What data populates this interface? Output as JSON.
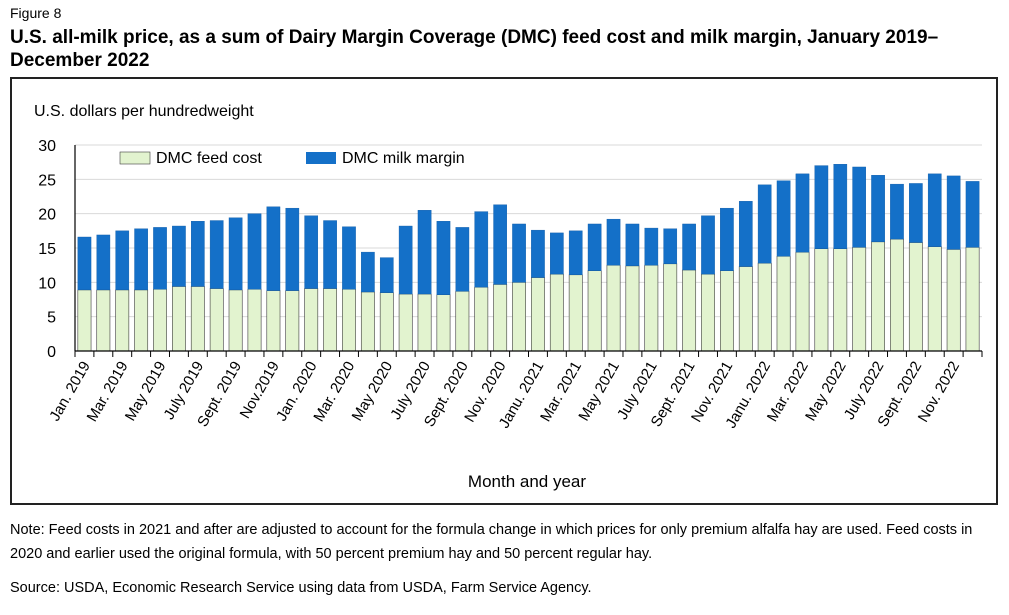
{
  "figure_label": "Figure 8",
  "title": "U.S. all-milk price, as a sum of Dairy Margin Coverage (DMC) feed cost and milk margin, January 2019–December 2022",
  "note": "Note: Feed costs in 2021 and after are adjusted to account for the formula change in which prices for only premium alfalfa hay are used. Feed costs in 2020 and earlier used the original formula, with 50 percent premium hay and 50 percent regular hay.",
  "source": "Source: USDA, Economic Research Service using data from USDA, Farm Service Agency.",
  "colors": {
    "feed": "#e2f3cf",
    "margin": "#1470c8",
    "axis": "#000000",
    "grid": "#d9d9d9"
  },
  "chart_data": {
    "type": "bar",
    "stacked": true,
    "ylabel": "U.S. dollars per hundredweight",
    "xlabel": "Month and year",
    "ylim": [
      0,
      30
    ],
    "yticks": [
      0,
      5,
      10,
      15,
      20,
      25,
      30
    ],
    "grid": "horizontal",
    "legend_position": "top-left",
    "x_tick_labels": [
      {
        "index": 0,
        "label": "Jan. 2019"
      },
      {
        "index": 2,
        "label": "Mar. 2019"
      },
      {
        "index": 4,
        "label": "May 2019"
      },
      {
        "index": 6,
        "label": "July 2019"
      },
      {
        "index": 8,
        "label": "Sept. 2019"
      },
      {
        "index": 10,
        "label": "Nov.2019"
      },
      {
        "index": 12,
        "label": "Jan. 2020"
      },
      {
        "index": 14,
        "label": "Mar. 2020"
      },
      {
        "index": 16,
        "label": "May 2020"
      },
      {
        "index": 18,
        "label": "July 2020"
      },
      {
        "index": 20,
        "label": "Sept. 2020"
      },
      {
        "index": 22,
        "label": "Nov. 2020"
      },
      {
        "index": 24,
        "label": "Janu. 2021"
      },
      {
        "index": 26,
        "label": "Mar. 2021"
      },
      {
        "index": 28,
        "label": "May 2021"
      },
      {
        "index": 30,
        "label": "July 2021"
      },
      {
        "index": 32,
        "label": "Sept. 2021"
      },
      {
        "index": 34,
        "label": "Nov. 2021"
      },
      {
        "index": 36,
        "label": "Janu. 2022"
      },
      {
        "index": 38,
        "label": "Mar. 2022"
      },
      {
        "index": 40,
        "label": "May 2022"
      },
      {
        "index": 42,
        "label": "July 2022"
      },
      {
        "index": 44,
        "label": "Sept. 2022"
      },
      {
        "index": 46,
        "label": "Nov. 2022"
      }
    ],
    "series": [
      {
        "name": "DMC feed cost",
        "values": [
          8.9,
          8.9,
          8.9,
          8.9,
          9.0,
          9.4,
          9.4,
          9.1,
          8.9,
          9.0,
          8.8,
          8.8,
          9.1,
          9.1,
          9.0,
          8.6,
          8.5,
          8.3,
          8.3,
          8.2,
          8.7,
          9.3,
          9.7,
          10.0,
          10.7,
          11.2,
          11.1,
          11.7,
          12.5,
          12.4,
          12.5,
          12.7,
          11.8,
          11.2,
          11.7,
          12.3,
          12.8,
          13.8,
          14.4,
          14.9,
          14.9,
          15.1,
          15.9,
          16.3,
          15.8,
          15.2,
          14.8,
          15.1
        ]
      },
      {
        "name": "DMC milk margin",
        "values": [
          7.7,
          8.0,
          8.6,
          8.9,
          9.0,
          8.8,
          9.5,
          9.9,
          10.5,
          11.0,
          12.2,
          12.0,
          10.6,
          9.9,
          9.1,
          5.8,
          5.1,
          9.9,
          12.2,
          10.7,
          9.3,
          11.0,
          11.6,
          8.5,
          6.9,
          6.0,
          6.4,
          6.8,
          6.7,
          6.1,
          5.4,
          5.1,
          6.7,
          8.5,
          9.1,
          9.5,
          11.4,
          11.0,
          11.4,
          12.1,
          12.3,
          11.7,
          9.7,
          8.0,
          8.6,
          10.6,
          10.7,
          9.6
        ]
      }
    ]
  }
}
